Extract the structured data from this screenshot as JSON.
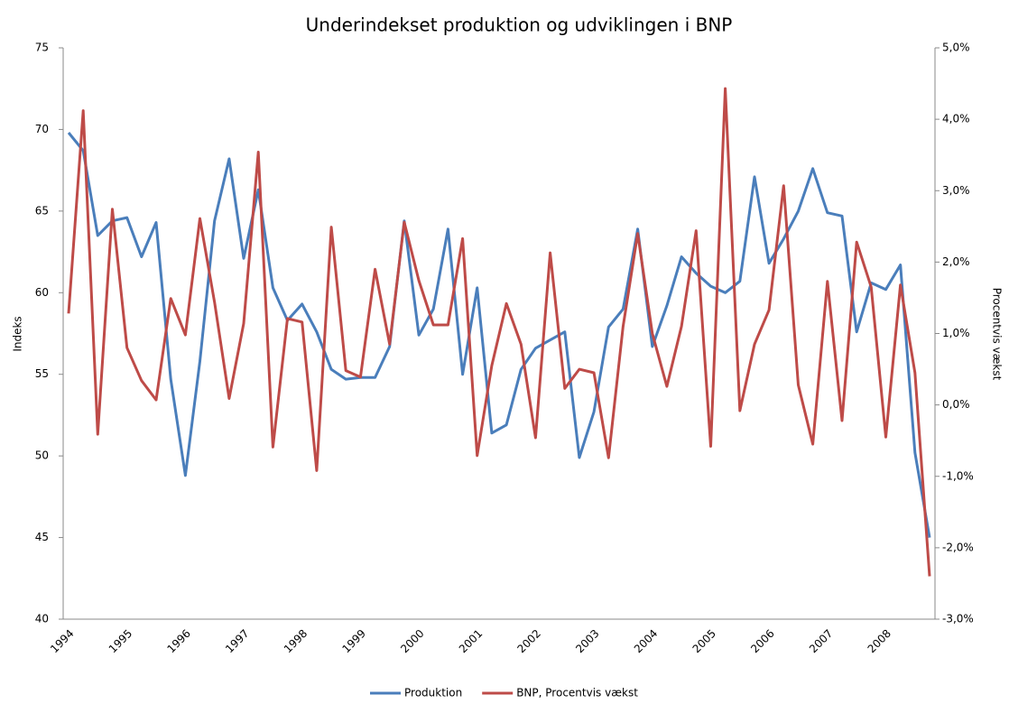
{
  "chart_data": {
    "type": "line",
    "title": "Underindekset produktion og udviklingen i BNP",
    "y_label": "Indeks",
    "y2_label": "Procentvis vækst",
    "categories": [
      "1994",
      null,
      null,
      null,
      "1995",
      null,
      null,
      null,
      "1996",
      null,
      null,
      null,
      "1997",
      null,
      null,
      null,
      "1998",
      null,
      null,
      null,
      "1999",
      null,
      null,
      null,
      "2000",
      null,
      null,
      null,
      "2001",
      null,
      null,
      null,
      "2002",
      null,
      null,
      null,
      "2003",
      null,
      null,
      null,
      "2004",
      null,
      null,
      null,
      "2005",
      null,
      null,
      null,
      "2006",
      null,
      null,
      null,
      "2007",
      null,
      null,
      null,
      "2008",
      null,
      null,
      null
    ],
    "ylim": [
      40,
      75
    ],
    "yticks": [
      40,
      45,
      50,
      55,
      60,
      65,
      70,
      75
    ],
    "y2lim": [
      -3,
      5
    ],
    "y2ticks": [
      {
        "value": -3,
        "label": "-3,0%"
      },
      {
        "value": -2,
        "label": "-2,0%"
      },
      {
        "value": -1,
        "label": "-1,0%"
      },
      {
        "value": 0,
        "label": "0,0%"
      },
      {
        "value": 1,
        "label": "1,0%"
      },
      {
        "value": 2,
        "label": "2,0%"
      },
      {
        "value": 3,
        "label": "3,0%"
      },
      {
        "value": 4,
        "label": "4,0%"
      },
      {
        "value": 5,
        "label": "5,0%"
      }
    ],
    "legend": "bottom",
    "series": [
      {
        "name": "Produktion",
        "color": "#4a7ebb",
        "values": [
          69.8,
          68.7,
          63.5,
          64.4,
          64.6,
          62.2,
          64.3,
          54.7,
          48.8,
          55.8,
          64.4,
          68.2,
          62.1,
          66.3,
          60.3,
          58.3,
          59.3,
          57.6,
          55.3,
          54.7,
          54.8,
          54.8,
          56.7,
          64.4,
          57.4,
          59.0,
          63.9,
          55.0,
          60.3,
          51.4,
          51.9,
          55.3,
          56.6,
          57.1,
          57.6,
          49.9,
          52.7,
          57.9,
          59.0,
          63.9,
          56.7,
          59.2,
          62.2,
          61.2,
          60.4,
          60.0,
          60.7,
          67.1,
          61.8,
          63.3,
          65.0,
          67.6,
          64.9,
          64.7,
          57.6,
          60.6,
          60.2,
          61.7,
          50.2,
          45.0
        ]
      },
      {
        "name": "BNP, Procentvis vækst",
        "color": "#be4b48",
        "axis": "y2",
        "values": [
          1.28,
          4.12,
          -0.41,
          2.74,
          0.8,
          0.34,
          0.07,
          1.49,
          0.98,
          2.61,
          1.44,
          0.09,
          1.14,
          3.54,
          -0.59,
          1.21,
          1.16,
          -0.92,
          2.49,
          0.48,
          0.39,
          1.9,
          0.85,
          2.56,
          1.74,
          1.12,
          1.12,
          2.33,
          -0.71,
          0.55,
          1.42,
          0.85,
          -0.46,
          2.13,
          0.23,
          0.5,
          0.45,
          -0.74,
          1.1,
          2.4,
          1.0,
          0.26,
          1.1,
          2.44,
          -0.58,
          4.43,
          -0.08,
          0.85,
          1.33,
          3.07,
          0.28,
          -0.55,
          1.73,
          -0.22,
          2.28,
          1.65,
          -0.45,
          1.68,
          0.45,
          -2.4
        ]
      }
    ]
  }
}
